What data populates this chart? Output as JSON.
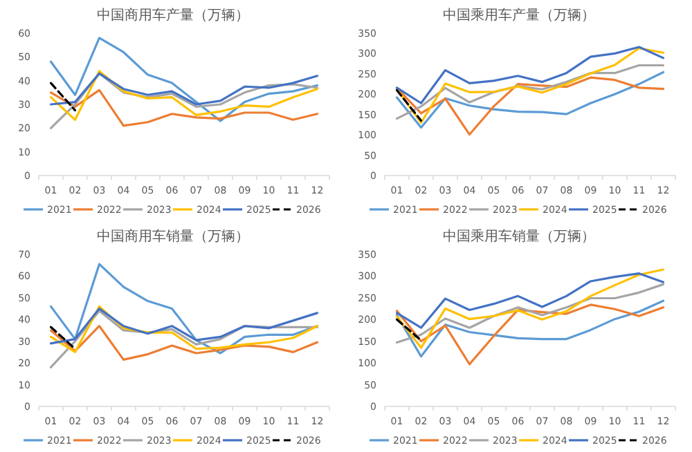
{
  "chart_data": [
    {
      "type": "line",
      "title": "中国商用车产量（万辆）",
      "categories": [
        "01",
        "02",
        "03",
        "04",
        "05",
        "06",
        "07",
        "08",
        "09",
        "10",
        "11",
        "12"
      ],
      "ylim": [
        0,
        60
      ],
      "yticks": [
        0,
        10,
        20,
        30,
        40,
        50,
        60
      ],
      "grid": false,
      "legend": "bottom",
      "series": [
        {
          "name": "2021",
          "color": "#5b9bd5",
          "values": [
            48,
            34,
            58,
            52,
            42.5,
            39,
            31,
            23,
            31,
            34.5,
            35.5,
            38
          ]
        },
        {
          "name": "2022",
          "color": "#ed7d31",
          "values": [
            35,
            29,
            36,
            21,
            22.5,
            26,
            24.5,
            24,
            26.5,
            26.5,
            23.5,
            26
          ]
        },
        {
          "name": "2023",
          "color": "#a5a5a5",
          "values": [
            20,
            30,
            43,
            35,
            33,
            34.5,
            29,
            30,
            35,
            38,
            38.5,
            37
          ]
        },
        {
          "name": "2024",
          "color": "#ffc000",
          "values": [
            33,
            23.5,
            44,
            35.5,
            32.5,
            33,
            25.5,
            27,
            29.5,
            29,
            33,
            36.5
          ]
        },
        {
          "name": "2025",
          "color": "#4472c4",
          "values": [
            30,
            31,
            43,
            36.5,
            34,
            35.5,
            30,
            31.5,
            37.5,
            37,
            39,
            42
          ]
        },
        {
          "name": "2026",
          "color": "#000000",
          "line_style": "dashed",
          "values": [
            39,
            27.5,
            null,
            null,
            null,
            null,
            null,
            null,
            null,
            null,
            null,
            null
          ]
        }
      ]
    },
    {
      "type": "line",
      "title": "中国乘用车产量（万辆）",
      "categories": [
        "01",
        "02",
        "03",
        "04",
        "05",
        "06",
        "07",
        "08",
        "09",
        "10",
        "11",
        "12"
      ],
      "ylim": [
        0,
        350
      ],
      "yticks": [
        0,
        50,
        100,
        150,
        200,
        250,
        300,
        350
      ],
      "grid": false,
      "legend": "bottom",
      "series": [
        {
          "name": "2021",
          "color": "#5b9bd5",
          "values": [
            192,
            118,
            190,
            172,
            163,
            157,
            156,
            151,
            178,
            200,
            225,
            254
          ]
        },
        {
          "name": "2022",
          "color": "#ed7d31",
          "values": [
            215,
            153,
            189,
            101,
            170,
            225,
            221,
            218,
            241,
            235,
            216,
            213
          ]
        },
        {
          "name": "2023",
          "color": "#a5a5a5",
          "values": [
            140,
            170,
            215,
            180,
            205,
            220,
            212,
            230,
            252,
            252,
            271,
            271
          ]
        },
        {
          "name": "2024",
          "color": "#ffc000",
          "values": [
            212,
            130,
            226,
            205,
            206,
            219,
            204,
            225,
            251,
            272,
            313,
            302
          ]
        },
        {
          "name": "2025",
          "color": "#4472c4",
          "values": [
            216,
            178,
            259,
            227,
            233,
            245,
            230,
            252,
            292,
            300,
            316,
            289
          ]
        },
        {
          "name": "2026",
          "color": "#000000",
          "line_style": "dashed",
          "values": [
            210,
            135,
            null,
            null,
            null,
            null,
            null,
            null,
            null,
            null,
            null,
            null
          ]
        }
      ]
    },
    {
      "type": "line",
      "title": "中国商用车销量（万辆）",
      "categories": [
        "01",
        "02",
        "03",
        "04",
        "05",
        "06",
        "07",
        "08",
        "09",
        "10",
        "11",
        "12"
      ],
      "ylim": [
        0,
        70
      ],
      "yticks": [
        0,
        10,
        20,
        30,
        40,
        50,
        60,
        70
      ],
      "grid": false,
      "legend": "bottom",
      "series": [
        {
          "name": "2021",
          "color": "#5b9bd5",
          "values": [
            46,
            31,
            65.5,
            55,
            48.5,
            45,
            30.5,
            24.5,
            32,
            33,
            33,
            37
          ]
        },
        {
          "name": "2022",
          "color": "#ed7d31",
          "values": [
            35,
            25.5,
            37,
            21.5,
            24,
            28,
            24.5,
            26,
            28,
            27.5,
            25,
            29.5
          ]
        },
        {
          "name": "2023",
          "color": "#a5a5a5",
          "values": [
            18,
            30,
            44,
            35,
            34,
            35.5,
            28.5,
            31,
            37,
            36.5,
            36.5,
            36.5
          ]
        },
        {
          "name": "2024",
          "color": "#ffc000",
          "values": [
            32,
            25,
            46,
            36,
            34,
            34,
            26.5,
            27,
            28.5,
            29.5,
            31.5,
            37
          ]
        },
        {
          "name": "2025",
          "color": "#4472c4",
          "values": [
            29,
            31,
            45,
            37,
            33.5,
            37,
            30.5,
            32,
            37,
            36,
            39.5,
            43
          ]
        },
        {
          "name": "2026",
          "color": "#000000",
          "line_style": "dashed",
          "values": [
            36.5,
            26.5,
            null,
            null,
            null,
            null,
            null,
            null,
            null,
            null,
            null,
            null
          ]
        }
      ]
    },
    {
      "type": "line",
      "title": "中国乘用车销量（万辆）",
      "categories": [
        "01",
        "02",
        "03",
        "04",
        "05",
        "06",
        "07",
        "08",
        "09",
        "10",
        "11",
        "12"
      ],
      "ylim": [
        0,
        350
      ],
      "yticks": [
        0,
        50,
        100,
        150,
        200,
        250,
        300,
        350
      ],
      "grid": false,
      "legend": "bottom",
      "series": [
        {
          "name": "2021",
          "color": "#5b9bd5",
          "values": [
            210,
            115,
            188,
            171,
            164,
            157,
            155,
            155,
            176,
            201,
            218,
            243
          ]
        },
        {
          "name": "2022",
          "color": "#ed7d31",
          "values": [
            220,
            150,
            186,
            97,
            162,
            222,
            217,
            213,
            234,
            224,
            208,
            228
          ]
        },
        {
          "name": "2023",
          "color": "#a5a5a5",
          "values": [
            147,
            165,
            202,
            181,
            208,
            228,
            210,
            228,
            249,
            249,
            262,
            281
          ]
        },
        {
          "name": "2024",
          "color": "#ffc000",
          "values": [
            207,
            135,
            225,
            201,
            208,
            221,
            200,
            219,
            254,
            279,
            303,
            315
          ]
        },
        {
          "name": "2025",
          "color": "#4472c4",
          "values": [
            215,
            181,
            248,
            222,
            236,
            254,
            229,
            254,
            288,
            298,
            306,
            286
          ]
        },
        {
          "name": "2026",
          "color": "#000000",
          "line_style": "dashed",
          "values": [
            200,
            152,
            null,
            null,
            null,
            null,
            null,
            null,
            null,
            null,
            null,
            null
          ]
        }
      ]
    }
  ]
}
